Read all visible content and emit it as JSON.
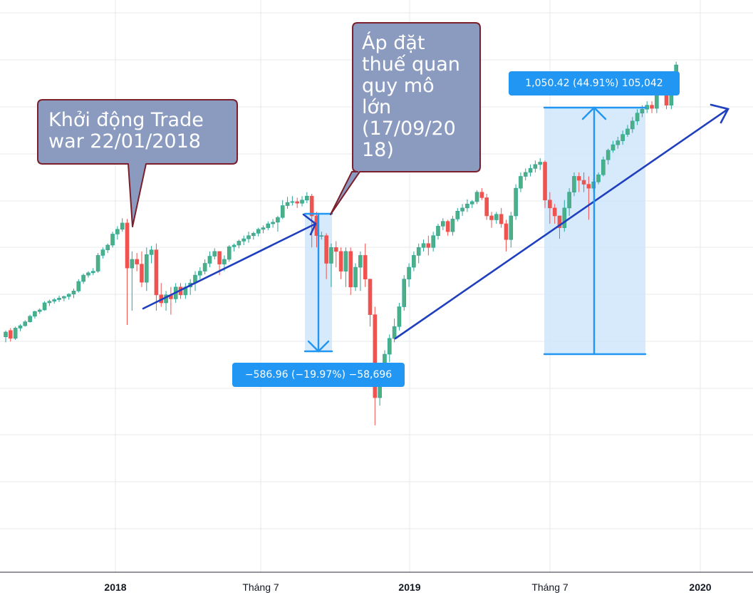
{
  "chart_data": {
    "type": "candlestick",
    "x_tick_labels": [
      {
        "label": "2018",
        "bold": true
      },
      {
        "label": "Tháng 7",
        "bold": false
      },
      {
        "label": "2019",
        "bold": true
      },
      {
        "label": "Tháng 7",
        "bold": false
      },
      {
        "label": "2020",
        "bold": true
      }
    ],
    "grid": true,
    "candles": [
      [
        2574,
        2590,
        2560,
        2586
      ],
      [
        2590,
        2596,
        2562,
        2570
      ],
      [
        2570,
        2600,
        2566,
        2596
      ],
      [
        2596,
        2606,
        2588,
        2602
      ],
      [
        2602,
        2616,
        2600,
        2612
      ],
      [
        2612,
        2630,
        2610,
        2626
      ],
      [
        2626,
        2640,
        2620,
        2638
      ],
      [
        2638,
        2646,
        2632,
        2642
      ],
      [
        2642,
        2664,
        2640,
        2660
      ],
      [
        2660,
        2668,
        2652,
        2664
      ],
      [
        2664,
        2672,
        2658,
        2668
      ],
      [
        2668,
        2678,
        2662,
        2672
      ],
      [
        2672,
        2678,
        2664,
        2676
      ],
      [
        2676,
        2684,
        2668,
        2682
      ],
      [
        2682,
        2696,
        2672,
        2690
      ],
      [
        2690,
        2720,
        2686,
        2714
      ],
      [
        2714,
        2734,
        2708,
        2730
      ],
      [
        2730,
        2740,
        2724,
        2736
      ],
      [
        2736,
        2748,
        2730,
        2740
      ],
      [
        2740,
        2786,
        2736,
        2780
      ],
      [
        2780,
        2800,
        2772,
        2794
      ],
      [
        2794,
        2810,
        2786,
        2806
      ],
      [
        2806,
        2840,
        2800,
        2834
      ],
      [
        2834,
        2854,
        2820,
        2846
      ],
      [
        2846,
        2874,
        2840,
        2862
      ],
      [
        2862,
        2872,
        2604,
        2748
      ],
      [
        2748,
        2790,
        2640,
        2770
      ],
      [
        2770,
        2786,
        2740,
        2758
      ],
      [
        2758,
        2790,
        2700,
        2712
      ],
      [
        2712,
        2800,
        2690,
        2782
      ],
      [
        2782,
        2804,
        2760,
        2794
      ],
      [
        2794,
        2810,
        2640,
        2680
      ],
      [
        2680,
        2710,
        2650,
        2660
      ],
      [
        2660,
        2690,
        2640,
        2680
      ],
      [
        2680,
        2700,
        2630,
        2670
      ],
      [
        2670,
        2710,
        2660,
        2700
      ],
      [
        2700,
        2710,
        2670,
        2680
      ],
      [
        2680,
        2710,
        2670,
        2700
      ],
      [
        2700,
        2720,
        2680,
        2710
      ],
      [
        2710,
        2740,
        2690,
        2730
      ],
      [
        2730,
        2750,
        2720,
        2740
      ],
      [
        2740,
        2770,
        2732,
        2760
      ],
      [
        2760,
        2790,
        2750,
        2778
      ],
      [
        2778,
        2798,
        2770,
        2790
      ],
      [
        2790,
        2790,
        2730,
        2758
      ],
      [
        2758,
        2780,
        2740,
        2770
      ],
      [
        2770,
        2806,
        2764,
        2802
      ],
      [
        2802,
        2810,
        2790,
        2806
      ],
      [
        2806,
        2820,
        2798,
        2816
      ],
      [
        2816,
        2830,
        2806,
        2822
      ],
      [
        2822,
        2840,
        2812,
        2830
      ],
      [
        2830,
        2840,
        2820,
        2836
      ],
      [
        2836,
        2850,
        2828,
        2846
      ],
      [
        2846,
        2856,
        2836,
        2850
      ],
      [
        2850,
        2866,
        2844,
        2860
      ],
      [
        2860,
        2872,
        2850,
        2864
      ],
      [
        2864,
        2880,
        2840,
        2876
      ],
      [
        2876,
        2920,
        2872,
        2906
      ],
      [
        2906,
        2928,
        2898,
        2914
      ],
      [
        2914,
        2930,
        2906,
        2916
      ],
      [
        2916,
        2926,
        2900,
        2912
      ],
      [
        2912,
        2930,
        2904,
        2920
      ],
      [
        2920,
        2940,
        2912,
        2930
      ],
      [
        2930,
        2936,
        2800,
        2880
      ],
      [
        2880,
        2890,
        2800,
        2830
      ],
      [
        2830,
        2840,
        2820,
        2830
      ],
      [
        2830,
        2836,
        2720,
        2760
      ],
      [
        2760,
        2810,
        2700,
        2800
      ],
      [
        2800,
        2816,
        2750,
        2790
      ],
      [
        2790,
        2800,
        2720,
        2740
      ],
      [
        2740,
        2800,
        2700,
        2790
      ],
      [
        2790,
        2800,
        2680,
        2700
      ],
      [
        2700,
        2760,
        2690,
        2750
      ],
      [
        2750,
        2790,
        2690,
        2780
      ],
      [
        2780,
        2810,
        2700,
        2720
      ],
      [
        2720,
        2720,
        2600,
        2630
      ],
      [
        2630,
        2650,
        2350,
        2420
      ],
      [
        2420,
        2490,
        2400,
        2480
      ],
      [
        2480,
        2540,
        2460,
        2530
      ],
      [
        2530,
        2580,
        2510,
        2570
      ],
      [
        2570,
        2620,
        2560,
        2600
      ],
      [
        2600,
        2660,
        2590,
        2650
      ],
      [
        2650,
        2730,
        2640,
        2720
      ],
      [
        2720,
        2760,
        2700,
        2750
      ],
      [
        2750,
        2790,
        2740,
        2780
      ],
      [
        2780,
        2810,
        2760,
        2800
      ],
      [
        2800,
        2820,
        2790,
        2810
      ],
      [
        2810,
        2830,
        2780,
        2800
      ],
      [
        2800,
        2840,
        2790,
        2830
      ],
      [
        2830,
        2860,
        2820,
        2854
      ],
      [
        2854,
        2874,
        2844,
        2866
      ],
      [
        2866,
        2870,
        2830,
        2840
      ],
      [
        2840,
        2880,
        2830,
        2872
      ],
      [
        2872,
        2900,
        2866,
        2892
      ],
      [
        2892,
        2910,
        2880,
        2900
      ],
      [
        2900,
        2922,
        2890,
        2910
      ],
      [
        2910,
        2920,
        2900,
        2916
      ],
      [
        2916,
        2945,
        2910,
        2940
      ],
      [
        2940,
        2950,
        2920,
        2926
      ],
      [
        2926,
        2936,
        2870,
        2880
      ],
      [
        2880,
        2890,
        2850,
        2870
      ],
      [
        2870,
        2890,
        2860,
        2884
      ],
      [
        2884,
        2900,
        2850,
        2860
      ],
      [
        2860,
        2870,
        2790,
        2820
      ],
      [
        2820,
        2890,
        2800,
        2880
      ],
      [
        2880,
        2960,
        2870,
        2950
      ],
      [
        2950,
        2990,
        2940,
        2980
      ],
      [
        2980,
        3000,
        2970,
        2990
      ],
      [
        2990,
        3010,
        2980,
        3000
      ],
      [
        3000,
        3020,
        2990,
        3010
      ],
      [
        3010,
        3026,
        2996,
        3016
      ],
      [
        3016,
        3020,
        2900,
        2920
      ],
      [
        2920,
        2940,
        2860,
        2900
      ],
      [
        2900,
        2910,
        2860,
        2880
      ],
      [
        2880,
        2880,
        2822,
        2850
      ],
      [
        2850,
        2920,
        2840,
        2900
      ],
      [
        2900,
        2950,
        2880,
        2940
      ],
      [
        2940,
        2990,
        2930,
        2980
      ],
      [
        2980,
        2990,
        2940,
        2970
      ],
      [
        2970,
        2990,
        2940,
        2960
      ],
      [
        2960,
        2980,
        2870,
        2950
      ],
      [
        2950,
        2974,
        2940,
        2966
      ],
      [
        2966,
        2990,
        2960,
        2984
      ],
      [
        2984,
        3030,
        2980,
        3022
      ],
      [
        3022,
        3050,
        3010,
        3046
      ],
      [
        3046,
        3070,
        3040,
        3060
      ],
      [
        3060,
        3080,
        3050,
        3070
      ],
      [
        3070,
        3096,
        3060,
        3086
      ],
      [
        3086,
        3110,
        3080,
        3100
      ],
      [
        3100,
        3130,
        3090,
        3120
      ],
      [
        3120,
        3150,
        3110,
        3140
      ],
      [
        3140,
        3160,
        3130,
        3150
      ],
      [
        3150,
        3170,
        3140,
        3160
      ],
      [
        3160,
        3170,
        3140,
        3152
      ],
      [
        3152,
        3220,
        3140,
        3210
      ],
      [
        3210,
        3230,
        3190,
        3200
      ],
      [
        3200,
        3210,
        3150,
        3160
      ],
      [
        3160,
        3240,
        3150,
        3232
      ],
      [
        3232,
        3270,
        3220,
        3262
      ]
    ],
    "annotations": [
      {
        "text": "Khởi động Trade\nwar 22/01/2018"
      },
      {
        "text": "Áp đặt\nthuế quan\nquy mô\nlớn\n(17/09/20\n18)"
      }
    ],
    "measurements": [
      {
        "label": "−586.96 (−19.97%) −58,696"
      },
      {
        "label": "1,050.42 (44.91%) 105,042"
      }
    ],
    "colors": {
      "up": "#26a69a",
      "up_body": "#26a69a",
      "down": "#ef5350",
      "trendline": "#1f3fbf",
      "measure": "#2196f3",
      "measure_fill": "#cfe6fb",
      "callout_fill": "#8b9bbf",
      "callout_border": "#7a1f2b"
    }
  }
}
